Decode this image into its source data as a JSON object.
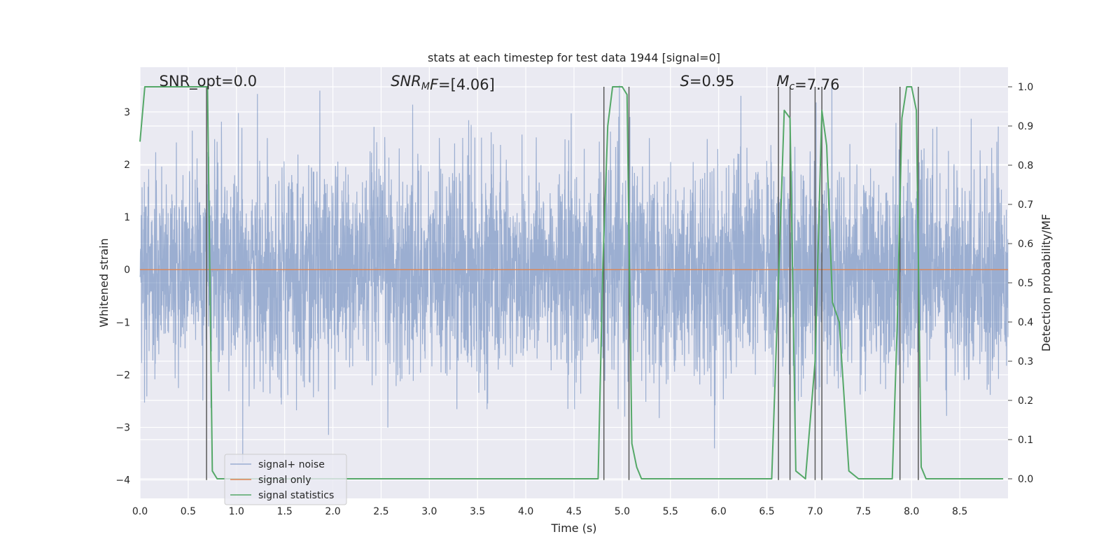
{
  "chart_data": {
    "type": "line",
    "title": "stats at each timestep for test data 1944 [signal=0]",
    "xlabel": "Time (s)",
    "ylabel_left": "Whitened strain",
    "ylabel_right": "Detection probability/MF",
    "xlim": [
      0,
      9
    ],
    "ylim_left": [
      -4.35,
      3.85
    ],
    "ylim_right": [
      -0.05,
      1.05
    ],
    "x_ticks": [
      "0.0",
      "0.5",
      "1.0",
      "1.5",
      "2.0",
      "2.5",
      "3.0",
      "3.5",
      "4.0",
      "4.5",
      "5.0",
      "5.5",
      "6.0",
      "6.5",
      "7.0",
      "7.5",
      "8.0",
      "8.5"
    ],
    "y_ticks_left": [
      "3",
      "2",
      "1",
      "0",
      "−1",
      "−2",
      "−3",
      "−4"
    ],
    "y_ticks_right": [
      "1.0",
      "0.9",
      "0.8",
      "0.7",
      "0.6",
      "0.5",
      "0.4",
      "0.3",
      "0.2",
      "0.1",
      "0.0"
    ],
    "grid": true,
    "legend_position": "lower-left",
    "annotations": [
      {
        "id": "snr_opt",
        "parts": [
          {
            "t": "SNR_opt=0.0",
            "style": "normal"
          }
        ],
        "x": 0.2
      },
      {
        "id": "snr_mf",
        "parts": [
          {
            "t": "SNR",
            "style": "italic"
          },
          {
            "t": "M",
            "style": "italic-sub"
          },
          {
            "t": "F",
            "style": "italic"
          },
          {
            "t": "=[4.06]",
            "style": "normal"
          }
        ],
        "x": 2.6
      },
      {
        "id": "s",
        "parts": [
          {
            "t": "S",
            "style": "italic"
          },
          {
            "t": "=0.95",
            "style": "normal"
          }
        ],
        "x": 5.6
      },
      {
        "id": "mc",
        "parts": [
          {
            "t": "M",
            "style": "italic"
          },
          {
            "t": "c",
            "style": "italic-sub"
          },
          {
            "t": "=7.76",
            "style": "normal"
          }
        ],
        "x": 6.6
      }
    ],
    "series": [
      {
        "name": "signal+ noise",
        "color": "#4c72b0",
        "opacity": 0.5,
        "kind": "noise",
        "sigma": 1.0,
        "approx_range": [
          -4.0,
          3.5
        ]
      },
      {
        "name": "signal only",
        "color": "#dd8452",
        "kind": "flat",
        "value": 0
      },
      {
        "name": "signal statistics",
        "color": "#55a868",
        "axis": "right",
        "x": [
          0.0,
          0.05,
          0.1,
          0.7,
          0.75,
          0.8,
          4.75,
          4.8,
          4.85,
          4.9,
          5.0,
          5.05,
          5.1,
          5.15,
          5.2,
          5.3,
          6.55,
          6.62,
          6.68,
          6.74,
          6.8,
          6.9,
          7.0,
          7.07,
          7.12,
          7.18,
          7.25,
          7.35,
          7.45,
          7.8,
          7.85,
          7.9,
          7.95,
          8.0,
          8.05,
          8.1,
          8.15,
          8.5,
          8.95
        ],
        "y": [
          0.86,
          1.0,
          1.0,
          1.0,
          0.02,
          0.0,
          0.0,
          0.55,
          0.9,
          1.0,
          1.0,
          0.98,
          0.09,
          0.03,
          0.0,
          0.0,
          0.0,
          0.5,
          0.94,
          0.92,
          0.02,
          0.0,
          0.3,
          0.94,
          0.85,
          0.45,
          0.4,
          0.02,
          0.0,
          0.0,
          0.38,
          0.92,
          1.0,
          1.0,
          0.94,
          0.03,
          0.0,
          0.0,
          0.0
        ]
      }
    ],
    "vertical_lines": {
      "color": "#595959",
      "x": [
        0.69,
        4.81,
        5.07,
        6.62,
        6.74,
        7.0,
        7.07,
        7.88,
        8.07
      ],
      "y_from": -4.0,
      "y_to_right": 1.0
    }
  }
}
